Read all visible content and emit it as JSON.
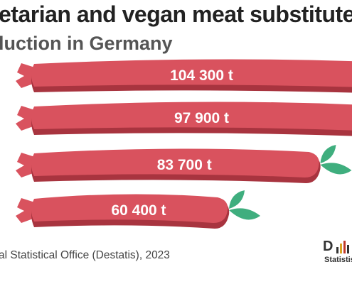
{
  "chart_data": {
    "type": "bar",
    "orientation": "horizontal",
    "title": "etarian and vegan meat substitute",
    "subtitle": "luction in Germany",
    "categories": [
      "",
      "",
      "",
      ""
    ],
    "values": [
      104300,
      97900,
      83700,
      60400
    ],
    "value_labels": [
      "104 300 t",
      "97 900 t",
      "83 700 t",
      "60 400 t"
    ],
    "xlim": [
      0,
      104300
    ]
  },
  "source": "al Statistical Office (Destatis), 2023",
  "logo": {
    "text": "D",
    "sub": "Statistisc"
  },
  "colors": {
    "sausage": "#d9525e",
    "sausage_shadow": "#a8343f",
    "leaf": "#3fae7e",
    "label": "#ffffff"
  }
}
